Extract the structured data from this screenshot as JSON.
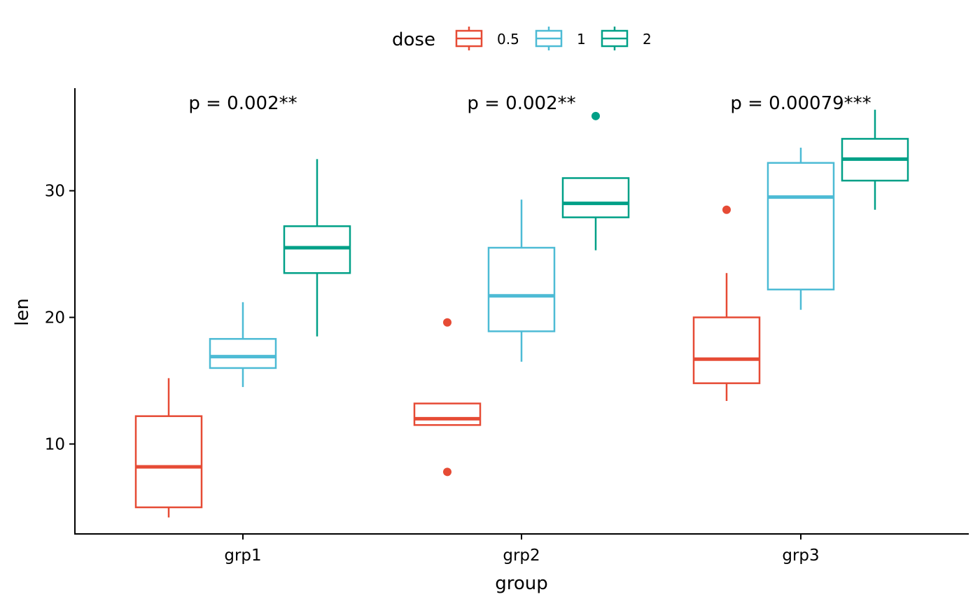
{
  "chart_data": {
    "type": "boxplot",
    "xlabel": "group",
    "ylabel": "len",
    "categories": [
      "grp1",
      "grp2",
      "grp3"
    ],
    "ylim": [
      2.9,
      38.1
    ],
    "yticks": [
      10,
      20,
      30
    ],
    "grid": false,
    "legend": {
      "title": "dose",
      "placement": "top"
    },
    "series": [
      {
        "name": "0.5",
        "color": "#E64B35",
        "boxes": [
          {
            "min": 4.2,
            "q1": 5.0,
            "median": 8.2,
            "q3": 12.2,
            "max": 15.2,
            "outliers": []
          },
          {
            "min": 11.5,
            "q1": 11.5,
            "median": 12.0,
            "q3": 13.2,
            "max": 13.2,
            "outliers": [
              19.6,
              7.8
            ]
          },
          {
            "min": 13.4,
            "q1": 14.8,
            "median": 16.7,
            "q3": 20.0,
            "max": 23.5,
            "outliers": [
              28.5
            ]
          }
        ]
      },
      {
        "name": "1",
        "color": "#4DBBD5",
        "boxes": [
          {
            "min": 14.5,
            "q1": 16.0,
            "median": 16.9,
            "q3": 18.3,
            "max": 21.2,
            "outliers": []
          },
          {
            "min": 16.5,
            "q1": 18.9,
            "median": 21.7,
            "q3": 25.5,
            "max": 29.3,
            "outliers": []
          },
          {
            "min": 20.6,
            "q1": 22.2,
            "median": 29.5,
            "q3": 32.2,
            "max": 33.4,
            "outliers": []
          }
        ]
      },
      {
        "name": "2",
        "color": "#00A087",
        "boxes": [
          {
            "min": 18.5,
            "q1": 23.5,
            "median": 25.5,
            "q3": 27.2,
            "max": 32.5,
            "outliers": []
          },
          {
            "min": 25.3,
            "q1": 27.9,
            "median": 29.0,
            "q3": 31.0,
            "max": 31.0,
            "outliers": [
              35.9
            ]
          },
          {
            "min": 28.5,
            "q1": 30.8,
            "median": 32.5,
            "q3": 34.1,
            "max": 36.4,
            "outliers": []
          }
        ]
      }
    ],
    "annotations": [
      {
        "group": "grp1",
        "text": "p = 0.002**"
      },
      {
        "group": "grp2",
        "text": "p = 0.002**"
      },
      {
        "group": "grp3",
        "text": "p = 0.00079***"
      }
    ]
  }
}
